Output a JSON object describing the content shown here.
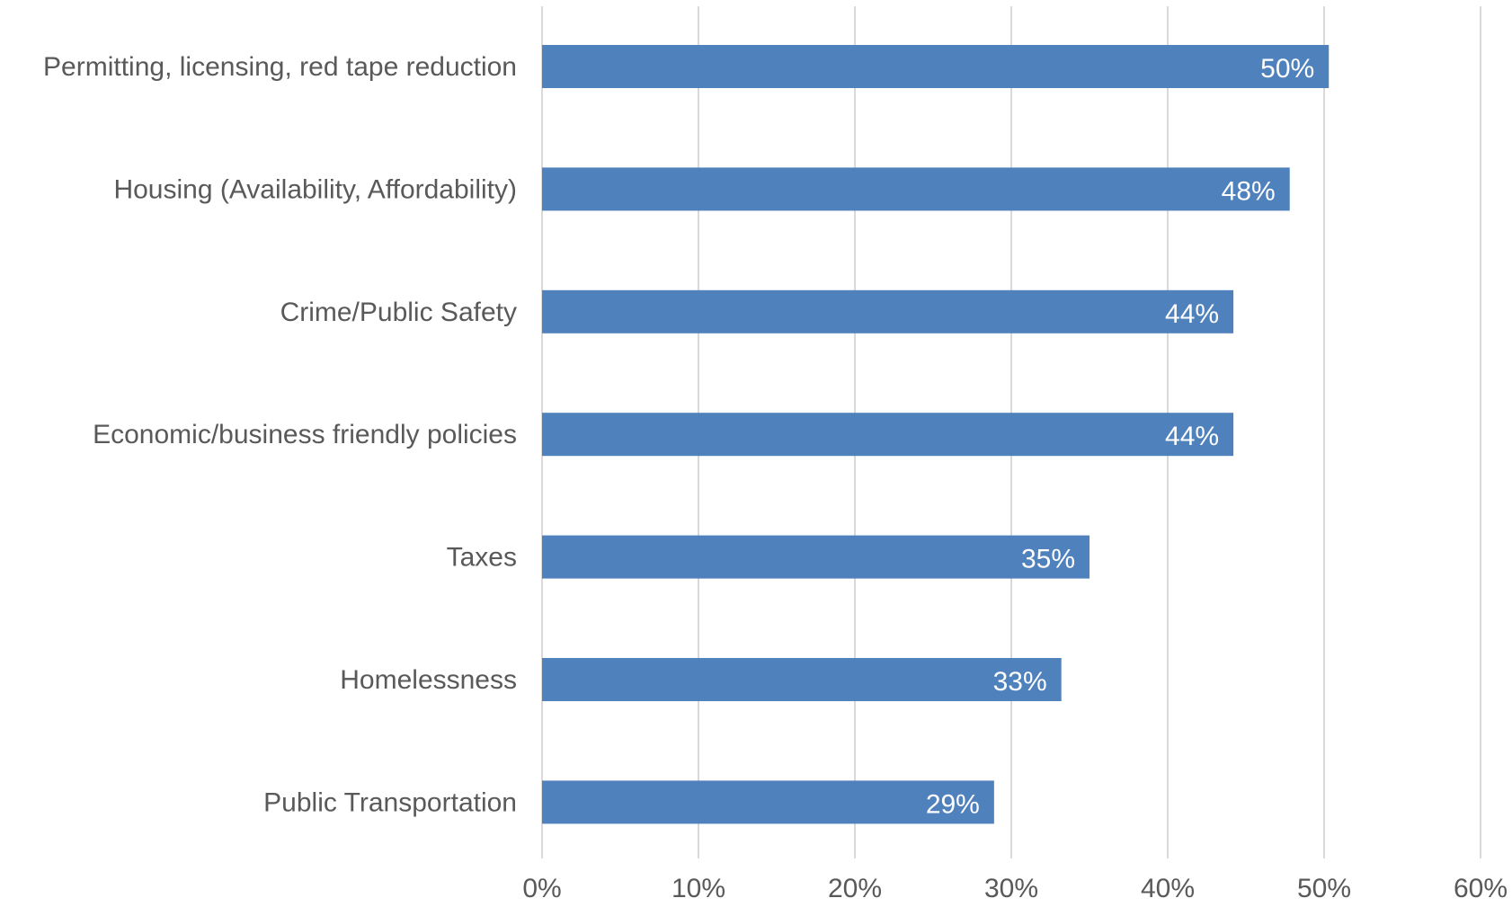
{
  "chart_data": {
    "type": "bar",
    "orientation": "horizontal",
    "categories": [
      "Permitting, licensing, red tape reduction",
      "Housing (Availability, Affordability)",
      "Crime/Public Safety",
      "Economic/business friendly policies",
      "Taxes",
      "Homelessness",
      "Public Transportation"
    ],
    "values": [
      50.3,
      47.8,
      44.2,
      44.2,
      35.0,
      33.2,
      28.9
    ],
    "data_labels": [
      "50%",
      "48%",
      "44%",
      "44%",
      "35%",
      "33%",
      "29%"
    ],
    "xlim": [
      0,
      60
    ],
    "x_ticks": [
      0,
      10,
      20,
      30,
      40,
      50,
      60
    ],
    "x_tick_labels": [
      "0%",
      "10%",
      "20%",
      "30%",
      "40%",
      "50%",
      "60%"
    ],
    "grid": "vertical",
    "legend": "none",
    "title": "",
    "xlabel": "",
    "ylabel": "",
    "bar_color": "#4f81bd"
  }
}
